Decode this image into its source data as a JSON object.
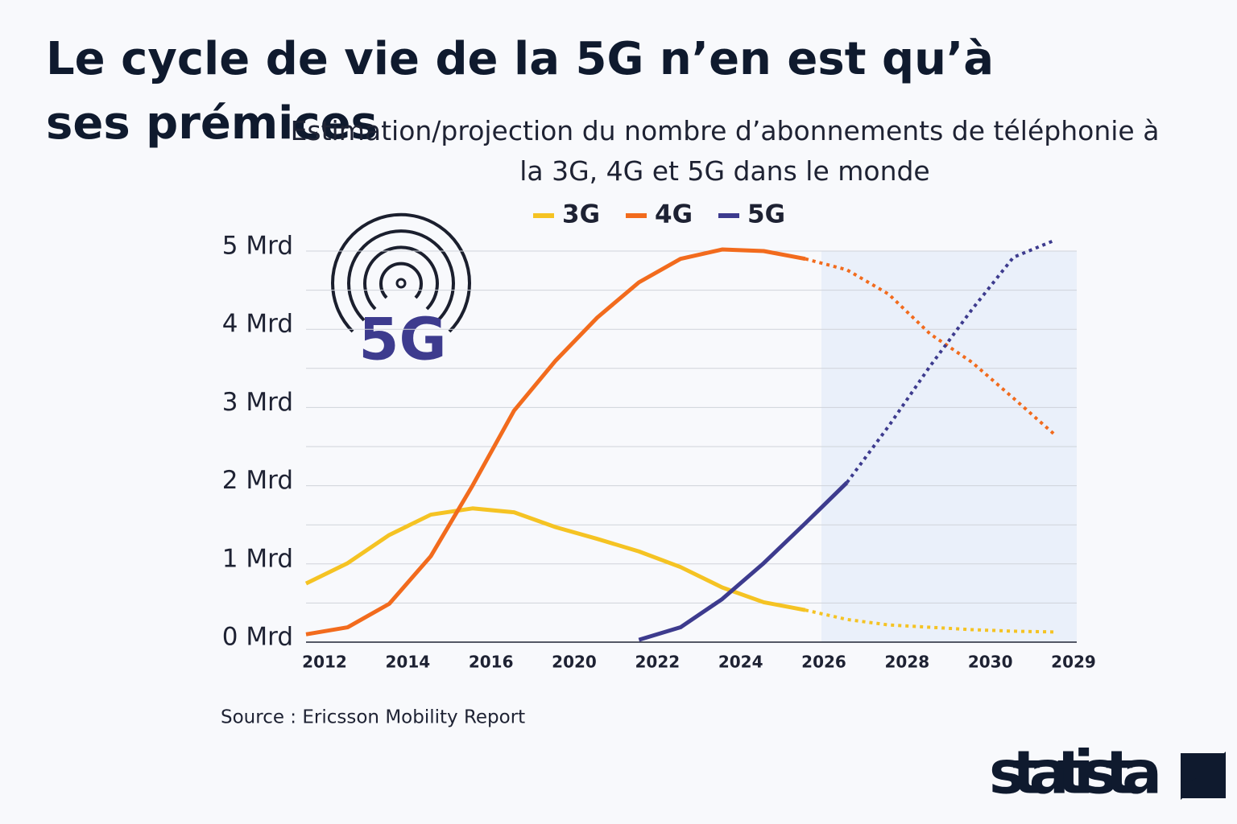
{
  "chart_data": {
    "type": "line",
    "title": "Le cycle de vie de la 5G n’en est qu’à ses prémices",
    "subtitle": "Estimation/projection du nombre d’abonnements de téléphonie à la 3G, 4G et 5G dans le monde",
    "icon_label": "5G",
    "source": "Source : Ericsson Mobility Report",
    "brand": "statista",
    "categories": [
      "2012",
      null,
      "2014",
      null,
      "2016",
      null,
      "2020",
      null,
      "2022",
      null,
      "2024",
      null,
      "2026",
      null,
      "2028",
      null,
      "2030",
      null,
      "2029"
    ],
    "series": [
      {
        "name": "3G",
        "color": "#f5c323",
        "values": [
          0.75,
          1.01,
          1.37,
          1.63,
          1.71,
          1.66,
          1.47,
          1.32,
          1.16,
          0.96,
          0.7,
          0.51,
          0.41,
          null,
          null,
          null,
          null,
          null,
          null
        ],
        "projected_values": [
          null,
          null,
          null,
          null,
          null,
          null,
          null,
          null,
          null,
          null,
          null,
          null,
          0.41,
          0.29,
          0.22,
          0.19,
          0.16,
          0.14,
          0.13
        ]
      },
      {
        "name": "4G",
        "color": "#f26b1d",
        "values": [
          0.1,
          0.19,
          0.49,
          1.1,
          2.0,
          2.96,
          3.6,
          4.15,
          4.6,
          4.9,
          5.02,
          5.0,
          4.9,
          null,
          null,
          null,
          null,
          null,
          null
        ],
        "projected_values": [
          null,
          null,
          null,
          null,
          null,
          null,
          null,
          null,
          null,
          null,
          null,
          null,
          4.9,
          4.76,
          4.45,
          3.94,
          3.58,
          3.12,
          2.65
        ]
      },
      {
        "name": "5G",
        "color": "#3d3b8e",
        "values": [
          null,
          null,
          null,
          null,
          null,
          null,
          null,
          null,
          0.03,
          0.19,
          0.55,
          1.01,
          1.52,
          2.04,
          null,
          null,
          null,
          null,
          null
        ],
        "projected_values": [
          null,
          null,
          null,
          null,
          null,
          null,
          null,
          null,
          null,
          null,
          null,
          null,
          null,
          2.04,
          2.76,
          3.53,
          4.25,
          4.92,
          5.14
        ]
      }
    ],
    "ylim": [
      0,
      5
    ],
    "yticks": [
      {
        "value": 0,
        "label": "0 Mrd"
      },
      {
        "value": 1,
        "label": "1 Mrd"
      },
      {
        "value": 2,
        "label": "2 Mrd"
      },
      {
        "value": 3,
        "label": "3 Mrd"
      },
      {
        "value": 4,
        "label": "4 Mrd"
      },
      {
        "value": 5,
        "label": "5 Mrd"
      }
    ],
    "minor_grid": [
      0.5,
      1.5,
      2.5,
      3.5,
      4.5
    ],
    "grid": true
  }
}
